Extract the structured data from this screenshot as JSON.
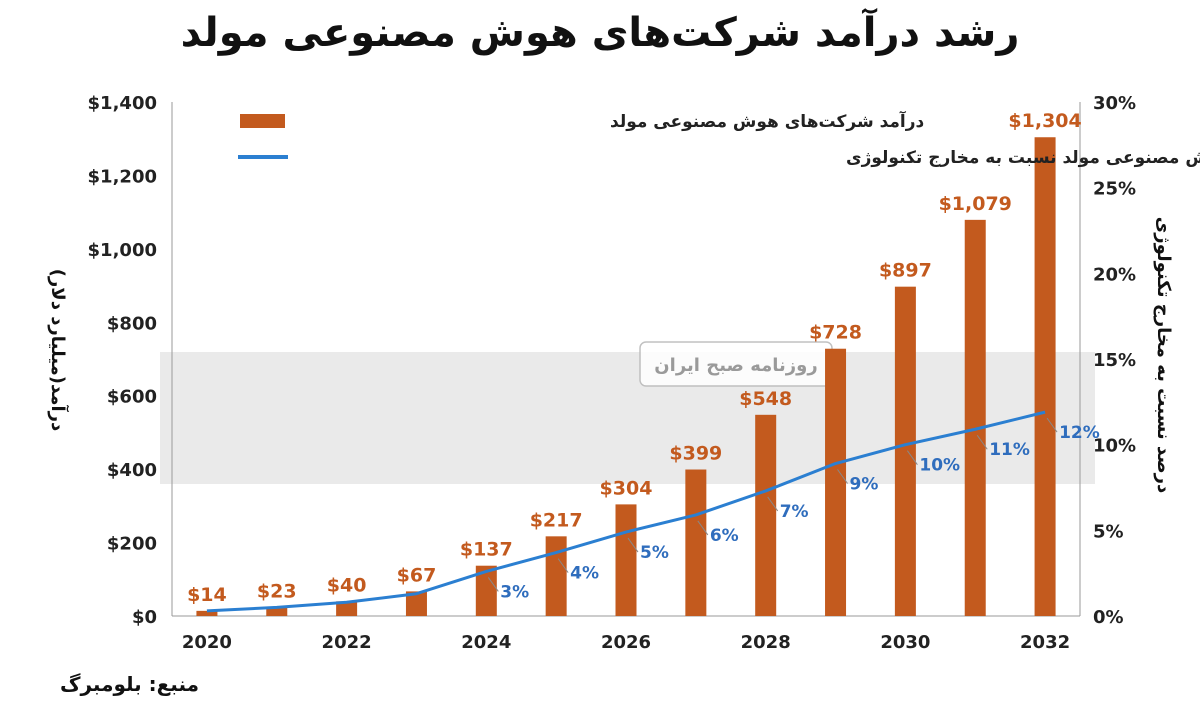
{
  "title": "رشد درآمد شرکت‌های هوش مصنوعی مولد",
  "source": "منبع: بلومبرگ",
  "watermark": "روزنامه صبح ایران",
  "colors": {
    "bar": "#c35a1e",
    "line": "#2b7fd1",
    "line_label": "#2f6dbd"
  },
  "chart_data": {
    "type": "bar",
    "categories": [
      "2020",
      "2021",
      "2022",
      "2023",
      "2024",
      "2025",
      "2026",
      "2027",
      "2028",
      "2029",
      "2030",
      "2031",
      "2032"
    ],
    "x_tick_labels": [
      "2020",
      "",
      "2022",
      "",
      "2024",
      "",
      "2026",
      "",
      "2028",
      "",
      "2030",
      "",
      "2032"
    ],
    "series": [
      {
        "name": "درآمد شرکت‌های هوش مصنوعی مولد",
        "type": "bar",
        "axis": "left",
        "values": [
          14,
          23,
          40,
          67,
          137,
          217,
          304,
          399,
          548,
          728,
          897,
          1079,
          1304
        ],
        "labels": [
          "$14",
          "$23",
          "$40",
          "$67",
          "$137",
          "$217",
          "$304",
          "$399",
          "$548",
          "$728",
          "$897",
          "$1,079",
          "$1,304"
        ]
      },
      {
        "name": "مخارج شرکت‌های هوش مصنوعی مولد نسبت به مخارج تکنولوژی",
        "type": "line",
        "axis": "right",
        "values": [
          0.3,
          0.5,
          0.8,
          1.3,
          2.6,
          3.7,
          4.9,
          5.9,
          7.3,
          8.9,
          10.0,
          10.9,
          11.9
        ],
        "labels": [
          "",
          "",
          "",
          "",
          "3%",
          "4%",
          "5%",
          "6%",
          "7%",
          "9%",
          "10%",
          "11%",
          "12%"
        ]
      }
    ],
    "ylabel_left": "درآمد(میلیارد دلار)",
    "ylabel_right": "درصد نسبت به مخارج تکنولوژی",
    "ylim_left": [
      0,
      1400
    ],
    "ylim_right": [
      0,
      30
    ],
    "y_left_ticks": [
      "$0",
      "$200",
      "$400",
      "$600",
      "$800",
      "$1,000",
      "$1,200",
      "$1,400"
    ],
    "y_right_ticks": [
      "0%",
      "5%",
      "10%",
      "15%",
      "20%",
      "25%",
      "30%"
    ],
    "legend_position": "top-left"
  }
}
